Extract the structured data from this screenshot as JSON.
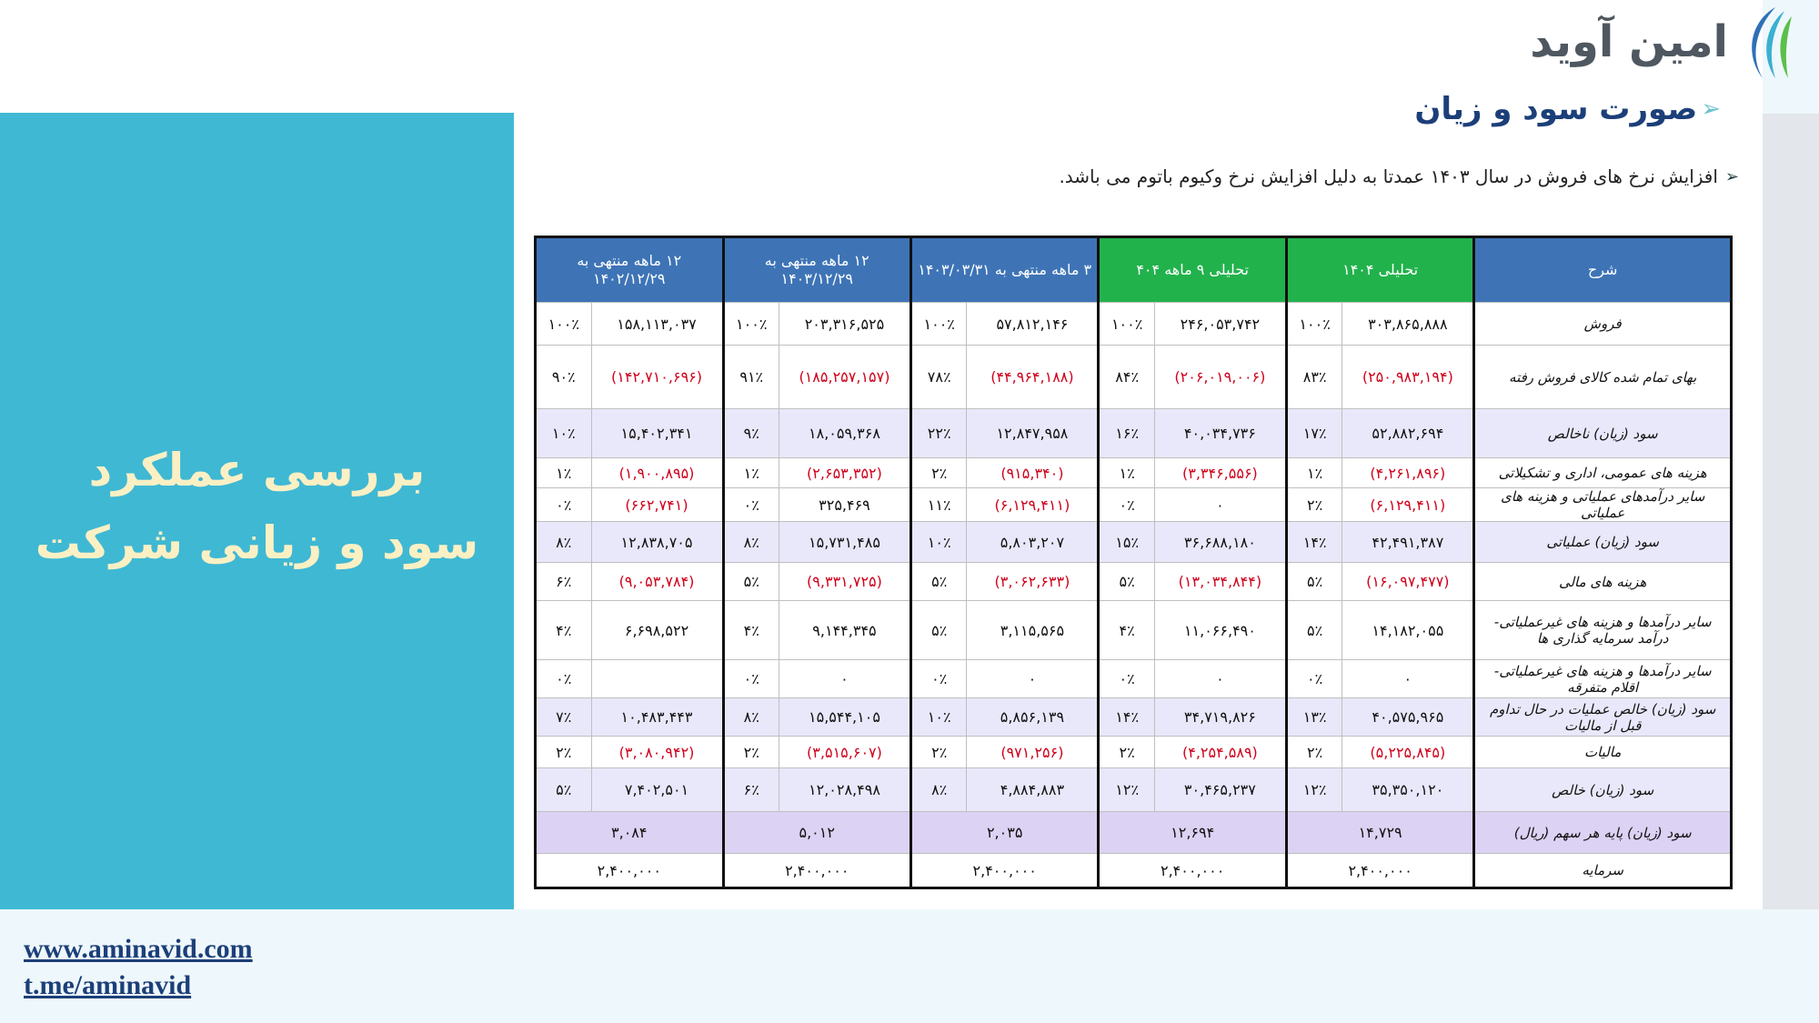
{
  "brand": {
    "logo_text": "امین آوید"
  },
  "page_title": "صورت سود و زیان",
  "note": "افزایش نرخ های فروش در سال ۱۴۰۳ عمدتا به دلیل افزایش نرخ وکیوم باتوم می باشد.",
  "side_title": {
    "line1": "بررسی عملکرد",
    "line2": "سود و زیانی شرکت"
  },
  "links": {
    "website": "www.aminavid.com",
    "telegram": "t.me/aminavid"
  },
  "colors": {
    "panel": "#3fb8d4",
    "header_blue": "#3e74b6",
    "header_green": "#22b24c",
    "negative": "#d0021b",
    "title": "#1c3f79"
  },
  "table": {
    "headers": [
      "شرح",
      "تحلیلی ۱۴۰۴",
      "تحلیلی ۹ ماهه ۴۰۴",
      "۳ ماهه منتهی به ۱۴۰۳/۰۳/۳۱",
      "۱۲ ماهه منتهی به ۱۴۰۳/۱۲/۲۹",
      "۱۲ ماهه منتهی به ۱۴۰۲/۱۲/۲۹"
    ],
    "rows": [
      {
        "label": "فروش",
        "cells": [
          [
            "۳۰۳,۸۶۵,۸۸۸",
            "۱۰۰٪"
          ],
          [
            "۲۴۶,۰۵۳,۷۴۲",
            "۱۰۰٪"
          ],
          [
            "۵۷,۸۱۲,۱۴۶",
            "۱۰۰٪"
          ],
          [
            "۲۰۳,۳۱۶,۵۲۵",
            "۱۰۰٪"
          ],
          [
            "۱۵۸,۱۱۳,۰۳۷",
            "۱۰۰٪"
          ]
        ]
      },
      {
        "label": "بهای تمام شده کالای فروش رفته",
        "cells": [
          [
            "(۲۵۰,۹۸۳,۱۹۴)",
            "۸۳٪"
          ],
          [
            "(۲۰۶,۰۱۹,۰۰۶)",
            "۸۴٪"
          ],
          [
            "(۴۴,۹۶۴,۱۸۸)",
            "۷۸٪"
          ],
          [
            "(۱۸۵,۲۵۷,۱۵۷)",
            "۹۱٪"
          ],
          [
            "(۱۴۲,۷۱۰,۶۹۶)",
            "۹۰٪"
          ]
        ]
      },
      {
        "label": "سود (زیان) ناخالص",
        "cells": [
          [
            "۵۲,۸۸۲,۶۹۴",
            "۱۷٪"
          ],
          [
            "۴۰,۰۳۴,۷۳۶",
            "۱۶٪"
          ],
          [
            "۱۲,۸۴۷,۹۵۸",
            "۲۲٪"
          ],
          [
            "۱۸,۰۵۹,۳۶۸",
            "۹٪"
          ],
          [
            "۱۵,۴۰۲,۳۴۱",
            "۱۰٪"
          ]
        ]
      },
      {
        "label": "هزینه های عمومی، اداری و تشکیلاتی",
        "cells": [
          [
            "(۴,۲۶۱,۸۹۶)",
            "۱٪"
          ],
          [
            "(۳,۳۴۶,۵۵۶)",
            "۱٪"
          ],
          [
            "(۹۱۵,۳۴۰)",
            "۲٪"
          ],
          [
            "(۲,۶۵۳,۳۵۲)",
            "۱٪"
          ],
          [
            "(۱,۹۰۰,۸۹۵)",
            "۱٪"
          ]
        ]
      },
      {
        "label": "سایر درآمدهای عملیاتی و هزینه های عملیاتی",
        "cells": [
          [
            "(۶,۱۲۹,۴۱۱)",
            "۲٪"
          ],
          [
            "۰",
            "۰٪"
          ],
          [
            "(۶,۱۲۹,۴۱۱)",
            "۱۱٪"
          ],
          [
            "۳۲۵,۴۶۹",
            "۰٪"
          ],
          [
            "(۶۶۲,۷۴۱)",
            "۰٪"
          ]
        ]
      },
      {
        "label": "سود (زیان) عملیاتی",
        "cells": [
          [
            "۴۲,۴۹۱,۳۸۷",
            "۱۴٪"
          ],
          [
            "۳۶,۶۸۸,۱۸۰",
            "۱۵٪"
          ],
          [
            "۵,۸۰۳,۲۰۷",
            "۱۰٪"
          ],
          [
            "۱۵,۷۳۱,۴۸۵",
            "۸٪"
          ],
          [
            "۱۲,۸۳۸,۷۰۵",
            "۸٪"
          ]
        ]
      },
      {
        "label": "هزینه های مالی",
        "cells": [
          [
            "(۱۶,۰۹۷,۴۷۷)",
            "۵٪"
          ],
          [
            "(۱۳,۰۳۴,۸۴۴)",
            "۵٪"
          ],
          [
            "(۳,۰۶۲,۶۳۳)",
            "۵٪"
          ],
          [
            "(۹,۳۳۱,۷۲۵)",
            "۵٪"
          ],
          [
            "(۹,۰۵۳,۷۸۴)",
            "۶٪"
          ]
        ]
      },
      {
        "label": "سایر درآمدها و هزینه های غیرعملیاتی- درآمد سرمایه گذاری ها",
        "cells": [
          [
            "۱۴,۱۸۲,۰۵۵",
            "۵٪"
          ],
          [
            "۱۱,۰۶۶,۴۹۰",
            "۴٪"
          ],
          [
            "۳,۱۱۵,۵۶۵",
            "۵٪"
          ],
          [
            "۹,۱۴۴,۳۴۵",
            "۴٪"
          ],
          [
            "۶,۶۹۸,۵۲۲",
            "۴٪"
          ]
        ]
      },
      {
        "label": "سایر درآمدها و هزینه های غیرعملیاتی- اقلام متفرقه",
        "cells": [
          [
            "۰",
            "۰٪"
          ],
          [
            "۰",
            "۰٪"
          ],
          [
            "۰",
            "۰٪"
          ],
          [
            "۰",
            "۰٪"
          ],
          [
            "",
            "۰٪"
          ]
        ]
      },
      {
        "label": "سود (زیان) خالص عملیات در حال تداوم قبل از مالیات",
        "cells": [
          [
            "۴۰,۵۷۵,۹۶۵",
            "۱۳٪"
          ],
          [
            "۳۴,۷۱۹,۸۲۶",
            "۱۴٪"
          ],
          [
            "۵,۸۵۶,۱۳۹",
            "۱۰٪"
          ],
          [
            "۱۵,۵۴۴,۱۰۵",
            "۸٪"
          ],
          [
            "۱۰,۴۸۳,۴۴۳",
            "۷٪"
          ]
        ]
      },
      {
        "label": "مالیات",
        "cells": [
          [
            "(۵,۲۲۵,۸۴۵)",
            "۲٪"
          ],
          [
            "(۴,۲۵۴,۵۸۹)",
            "۲٪"
          ],
          [
            "(۹۷۱,۲۵۶)",
            "۲٪"
          ],
          [
            "(۳,۵۱۵,۶۰۷)",
            "۲٪"
          ],
          [
            "(۳,۰۸۰,۹۴۲)",
            "۲٪"
          ]
        ]
      },
      {
        "label": "سود (زیان) خالص",
        "cells": [
          [
            "۳۵,۳۵۰,۱۲۰",
            "۱۲٪"
          ],
          [
            "۳۰,۴۶۵,۲۳۷",
            "۱۲٪"
          ],
          [
            "۴,۸۸۴,۸۸۳",
            "۸٪"
          ],
          [
            "۱۲,۰۲۸,۴۹۸",
            "۶٪"
          ],
          [
            "۷,۴۰۲,۵۰۱",
            "۵٪"
          ]
        ]
      }
    ],
    "eps": {
      "label": "سود (زیان) پایه هر سهم (ریال)",
      "values": [
        "۱۴,۷۲۹",
        "۱۲,۶۹۴",
        "۲,۰۳۵",
        "۵,۰۱۲",
        "۳,۰۸۴"
      ]
    },
    "capital": {
      "label": "سرمایه",
      "values": [
        "۲,۴۰۰,۰۰۰",
        "۲,۴۰۰,۰۰۰",
        "۲,۴۰۰,۰۰۰",
        "۲,۴۰۰,۰۰۰",
        "۲,۴۰۰,۰۰۰"
      ]
    }
  }
}
